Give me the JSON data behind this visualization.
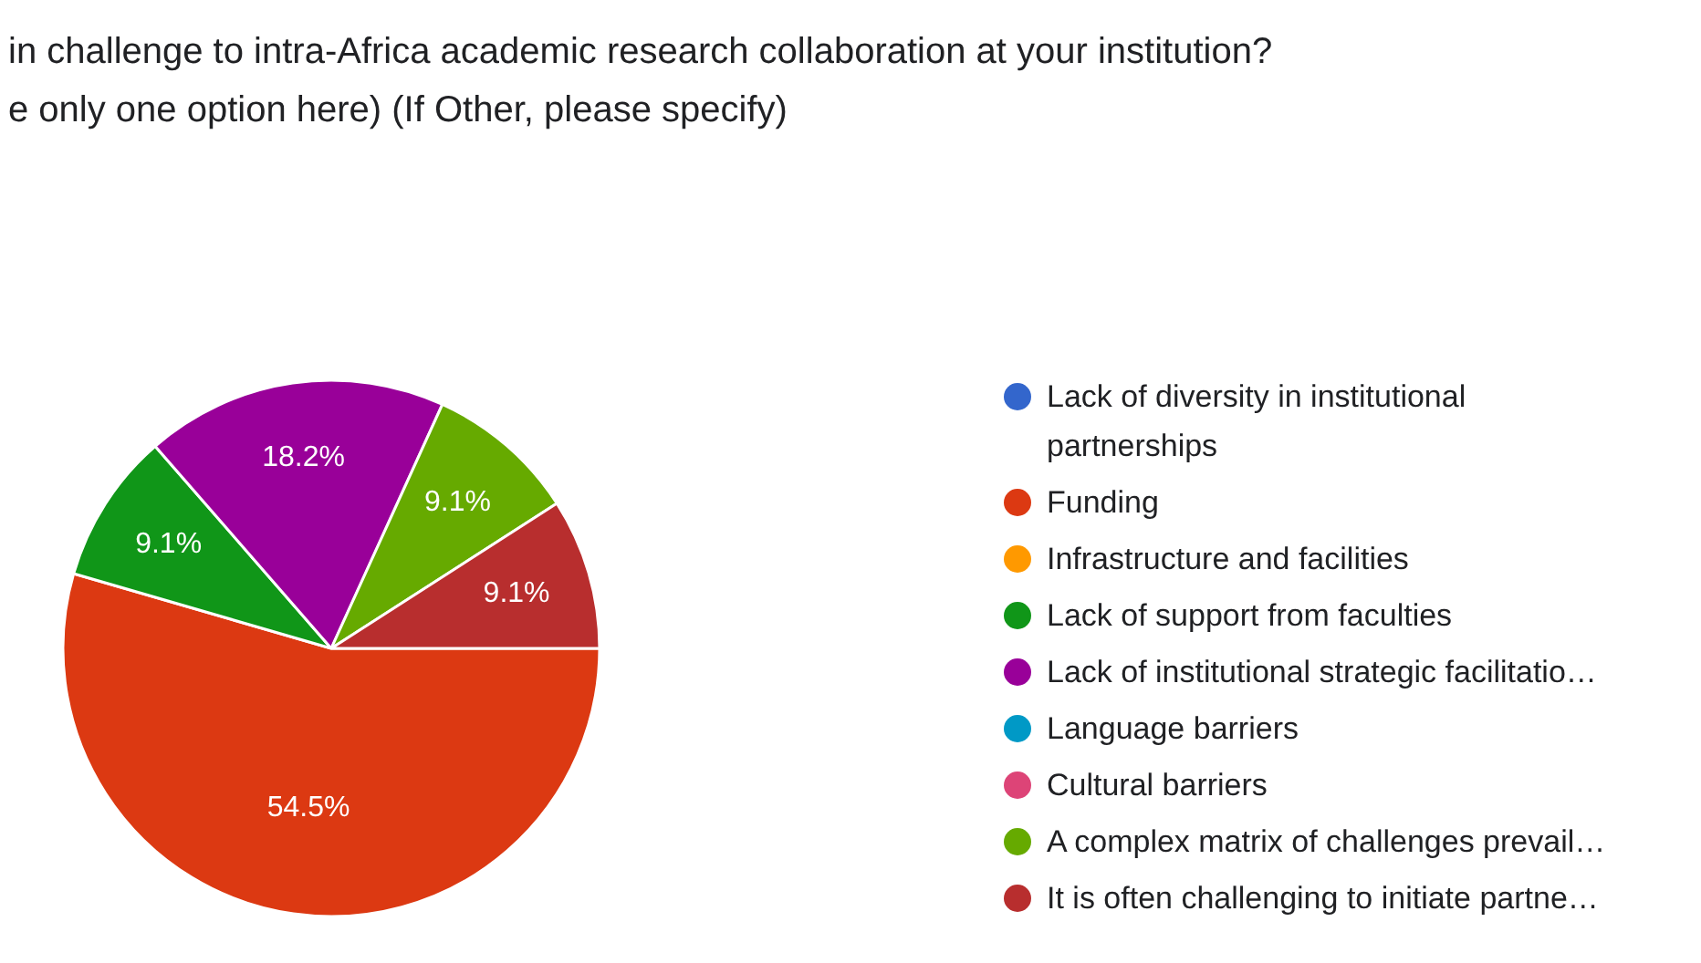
{
  "chart_data": {
    "type": "pie",
    "title": "in challenge to intra-Africa academic research collaboration at your institution?",
    "subtitle": "e only one option here) (If Other, please specify)",
    "categories": [
      "Lack of diversity in institutional partnerships",
      "Funding",
      "Infrastructure and facilities",
      "Lack of support from faculties",
      "Lack of institutional strategic facilitatio…",
      "Language barriers",
      "Cultural barriers",
      "A complex matrix of challenges prevail…",
      "It is often challenging to initiate partne…"
    ],
    "values": [
      0,
      54.5,
      0,
      9.1,
      18.2,
      0,
      0,
      9.1,
      9.1
    ],
    "colors": [
      "#3366cc",
      "#dc3912",
      "#ff9900",
      "#109618",
      "#990099",
      "#0099c6",
      "#dd4477",
      "#66aa00",
      "#b82e2e"
    ],
    "value_labels": [
      null,
      "54.5%",
      null,
      "9.1%",
      "18.2%",
      null,
      null,
      "9.1%",
      "9.1%"
    ],
    "legend": "right"
  }
}
